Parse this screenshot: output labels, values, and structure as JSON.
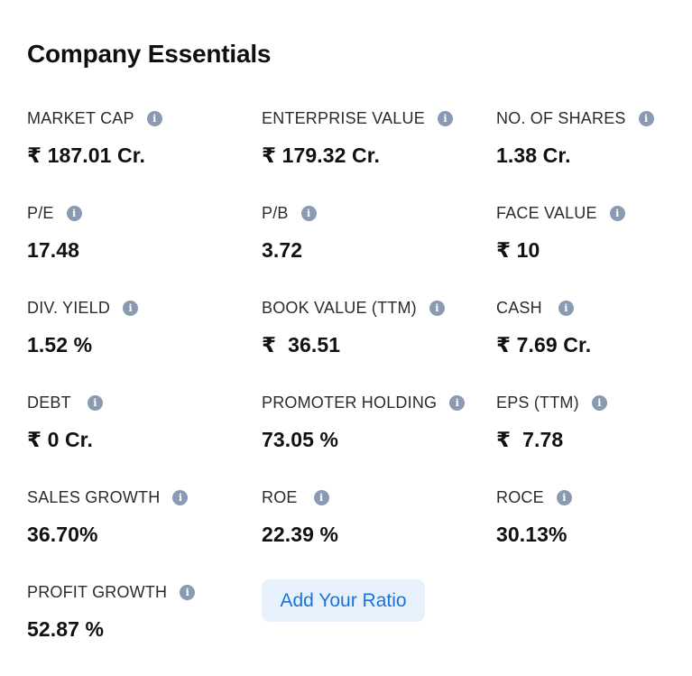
{
  "section": {
    "title": "Company Essentials"
  },
  "metrics": [
    {
      "label": "MARKET CAP",
      "value": "₹ 187.01 Cr."
    },
    {
      "label": "ENTERPRISE VALUE",
      "value": "₹ 179.32 Cr."
    },
    {
      "label": "NO. OF SHARES",
      "value": "1.38 Cr."
    },
    {
      "label": "P/E",
      "value": "17.48"
    },
    {
      "label": "P/B",
      "value": "3.72"
    },
    {
      "label": "FACE VALUE",
      "value": "₹ 10"
    },
    {
      "label": "DIV. YIELD",
      "value": "1.52 %"
    },
    {
      "label": "BOOK VALUE (TTM)",
      "value": "₹  36.51"
    },
    {
      "label": "CASH",
      "value": "₹ 7.69 Cr."
    },
    {
      "label": "DEBT",
      "value": "₹ 0 Cr."
    },
    {
      "label": "PROMOTER HOLDING",
      "value": "73.05 %"
    },
    {
      "label": "EPS (TTM)",
      "value": "₹  7.78"
    },
    {
      "label": "SALES GROWTH",
      "value": "36.70%"
    },
    {
      "label": "ROE",
      "value": "22.39 %"
    },
    {
      "label": "ROCE",
      "value": "30.13%"
    },
    {
      "label": "PROFIT GROWTH",
      "value": "52.87 %"
    }
  ],
  "actions": {
    "add_ratio_label": "Add Your Ratio"
  },
  "icons": {
    "info": "info-icon"
  },
  "colors": {
    "accent": "#1a73d9",
    "button_bg": "#e6f1fc",
    "info_icon": "#8a9ab3"
  }
}
